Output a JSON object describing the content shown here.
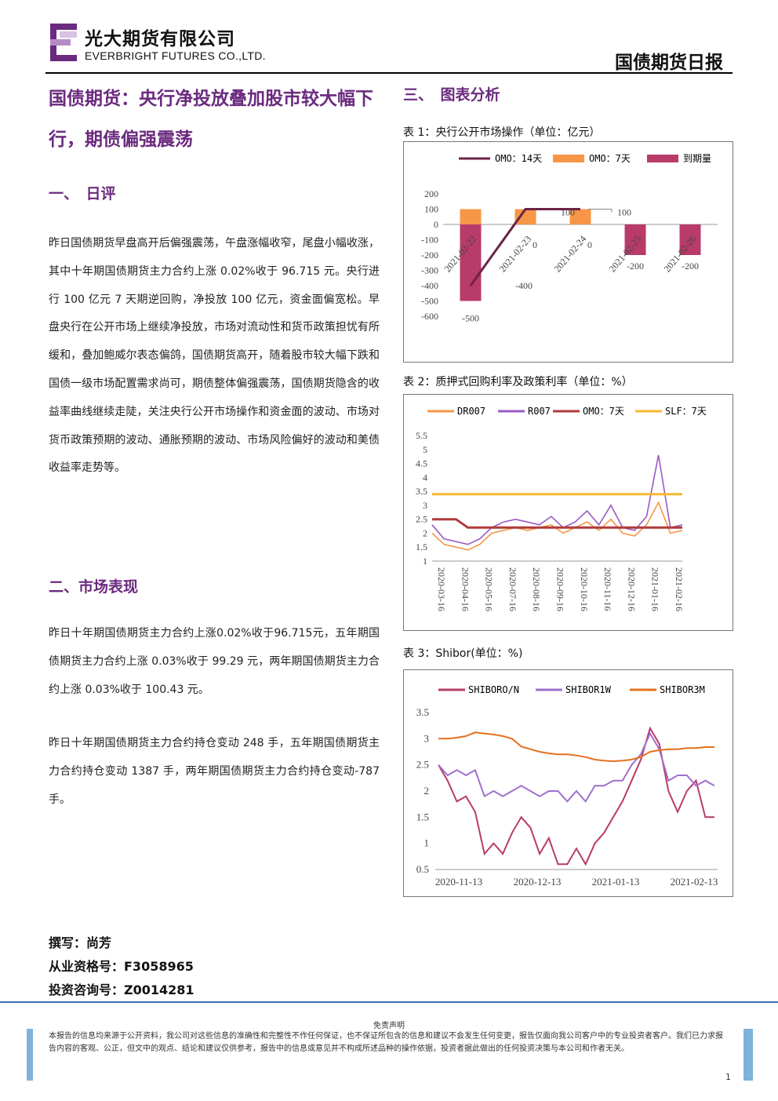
{
  "header": {
    "company_cn": "光大期货有限公司",
    "company_en": "EVERBRIGHT FUTURES CO.,LTD.",
    "report_name": "国债期货日报"
  },
  "headline": "国债期货：央行净投放叠加股市较大幅下行，期债偏强震荡",
  "sections": {
    "s1_title": "一、　日评",
    "s1_para": "昨日国债期货早盘高开后偏强震荡，午盘涨幅收窄，尾盘小幅收涨，其中十年期国债期货主力合约上涨 0.02%收于 96.715 元。央行进行 100 亿元 7 天期逆回购，净投放 100 亿元，资金面偏宽松。早盘央行在公开市场上继续净投放，市场对流动性和货币政策担忧有所缓和，叠加鲍威尔表态偏鸽，国债期货高开，随着股市较大幅下跌和国债一级市场配置需求尚可，期债整体偏强震荡，国债期货隐含的收益率曲线继续走陡，关注央行公开市场操作和资金面的波动、市场对货币政策预期的波动、通胀预期的波动、市场风险偏好的波动和美债收益率走势等。",
    "s2_title": "二、市场表现",
    "s2_para1": "昨日十年期国债期货主力合约上涨0.02%收于96.715元，五年期国债期货主力合约上涨 0.03%收于 99.29 元，两年期国债期货主力合约上涨 0.03%收于 100.43 元。",
    "s2_para2": "昨日十年期国债期货主力合约持仓变动 248 手，五年期国债期货主力合约持仓变动 1387 手，两年期国债期货主力合约持仓变动-787 手。",
    "s3_title": "三、　图表分析"
  },
  "author": {
    "writer": "撰写：尚芳",
    "license": "从业资格号：F3058965",
    "consult": "投资咨询号：Z0014281"
  },
  "charts": {
    "c1_caption": "表 1：央行公开市场操作（单位：亿元）",
    "c2_caption": "表 2：质押式回购利率及政策利率（单位：%）",
    "c3_caption": "表 3：Shibor(单位：%)"
  },
  "chart_data": [
    {
      "type": "bar",
      "title": "",
      "categories": [
        "2021-02-22",
        "2021-02-23",
        "2021-02-24",
        "2021-02-25",
        "2021-02-26"
      ],
      "series": [
        {
          "name": "OMO：14天",
          "kind": "line",
          "values": [
            -400,
            100,
            100,
            null,
            null
          ]
        },
        {
          "name": "OMO：7天",
          "kind": "bar",
          "values": [
            100,
            100,
            100,
            null,
            null
          ]
        },
        {
          "name": "到期量",
          "kind": "bar",
          "values": [
            -500,
            0,
            0,
            -200,
            -200
          ]
        }
      ],
      "data_labels": [
        "-500",
        "0",
        "0",
        "-200",
        "-200",
        "-400",
        "100",
        "100"
      ],
      "ylim": [
        -600,
        200
      ],
      "yticks": [
        200,
        100,
        0,
        -100,
        -200,
        -300,
        -400,
        -500,
        -600
      ],
      "legend": "top",
      "colors": {
        "OMO：14天": "#6b2347",
        "OMO：7天": "#f79646",
        "到期量": "#b83b6a"
      }
    },
    {
      "type": "line",
      "title": "",
      "x_ticks": [
        "2020-03-16",
        "2020-04-16",
        "2020-05-16",
        "2020-06-16",
        "2020-07-16",
        "2020-08-16",
        "2020-09-16",
        "2020-10-16",
        "2020-11-16",
        "2020-12-16",
        "2021-01-16",
        "2021-02-16"
      ],
      "x_tick_labels_shown": [
        "2020-03-16",
        "2020-04-16",
        "2020-05-16",
        "2020-07-16",
        "2020-08-16",
        "2020-09-16",
        "2020-10-16",
        "2020-11-16",
        "2020-12-16",
        "2021-01-16",
        "2021-02-16"
      ],
      "ylim": [
        1,
        5.5
      ],
      "yticks": [
        5.5,
        5,
        4.5,
        4,
        3.5,
        3,
        2.5,
        2,
        1.5,
        1
      ],
      "series": [
        {
          "name": "DR007",
          "values": [
            2.0,
            1.6,
            1.5,
            1.4,
            1.6,
            2.0,
            2.1,
            2.2,
            2.1,
            2.2,
            2.3,
            2.0,
            2.2,
            2.4,
            2.1,
            2.5,
            2.0,
            1.9,
            2.3,
            3.1,
            2.0,
            2.1
          ]
        },
        {
          "name": "R007",
          "values": [
            2.3,
            1.8,
            1.7,
            1.6,
            1.8,
            2.2,
            2.4,
            2.5,
            2.4,
            2.3,
            2.6,
            2.2,
            2.4,
            2.8,
            2.3,
            3.0,
            2.2,
            2.1,
            2.6,
            4.8,
            2.2,
            2.3
          ]
        },
        {
          "name": "OMO：7天",
          "values": [
            2.5,
            2.5,
            2.5,
            2.2,
            2.2,
            2.2,
            2.2,
            2.2,
            2.2,
            2.2,
            2.2,
            2.2,
            2.2,
            2.2,
            2.2,
            2.2,
            2.2,
            2.2,
            2.2,
            2.2,
            2.2,
            2.2
          ]
        },
        {
          "name": "SLF：7天",
          "values": [
            3.4,
            3.4,
            3.4,
            3.4,
            3.4,
            3.4,
            3.4,
            3.4,
            3.4,
            3.4,
            3.4,
            3.4,
            3.4,
            3.4,
            3.4,
            3.4,
            3.4,
            3.4,
            3.4,
            3.4,
            3.4,
            3.4
          ]
        }
      ],
      "legend": "top",
      "colors": {
        "DR007": "#f79646",
        "R007": "#9b59c6",
        "OMO：7天": "#b03a3a",
        "SLF：7天": "#f5b82e"
      }
    },
    {
      "type": "line",
      "title": "",
      "x_ticks": [
        "2020-11-13",
        "2020-12-13",
        "2021-01-13",
        "2021-02-13"
      ],
      "ylim": [
        0.5,
        3.5
      ],
      "yticks": [
        3.5,
        3,
        2.5,
        2,
        1.5,
        1,
        0.5
      ],
      "series": [
        {
          "name": "SHIBORO/N",
          "values": [
            2.5,
            2.2,
            1.8,
            1.9,
            1.6,
            0.8,
            1.0,
            0.8,
            1.2,
            1.5,
            1.3,
            0.8,
            1.1,
            0.6,
            0.6,
            0.9,
            0.6,
            1.0,
            1.2,
            1.5,
            1.8,
            2.2,
            2.6,
            3.2,
            2.9,
            2.0,
            1.6,
            2.0,
            2.2,
            1.5,
            1.5
          ]
        },
        {
          "name": "SHIBOR1W",
          "values": [
            2.5,
            2.3,
            2.4,
            2.3,
            2.4,
            1.9,
            2.0,
            1.9,
            2.0,
            2.1,
            2.0,
            1.9,
            2.0,
            2.0,
            1.8,
            2.0,
            1.8,
            2.1,
            2.1,
            2.2,
            2.2,
            2.5,
            2.7,
            3.1,
            2.8,
            2.2,
            2.3,
            2.3,
            2.1,
            2.2,
            2.1
          ]
        },
        {
          "name": "SHIBOR3M",
          "values": [
            3.0,
            3.0,
            3.02,
            3.05,
            3.12,
            3.1,
            3.08,
            3.05,
            3.0,
            2.85,
            2.8,
            2.75,
            2.72,
            2.7,
            2.7,
            2.68,
            2.65,
            2.6,
            2.58,
            2.57,
            2.58,
            2.6,
            2.65,
            2.75,
            2.78,
            2.8,
            2.8,
            2.82,
            2.82,
            2.84,
            2.84
          ]
        }
      ],
      "legend": "top",
      "colors": {
        "SHIBORO/N": "#b83b6a",
        "SHIBOR1W": "#a070cc",
        "SHIBOR3M": "#e4701e"
      }
    }
  ],
  "footer": {
    "disclaimer_title": "免责声明",
    "disclaimer": "本报告的信息均来源于公开资料，我公司对这些信息的准确性和完整性不作任何保证，也不保证所包含的信息和建议不会发生任何变更，报告仅面向我公司客户中的专业投资者客户。我们已力求报告内容的客观、公正，但文中的观点、结论和建议仅供参考，报告中的信息或意见并不构成所述品种的操作依据，投资者据此做出的任何投资决策与本公司和作者无关。",
    "page": "1"
  }
}
